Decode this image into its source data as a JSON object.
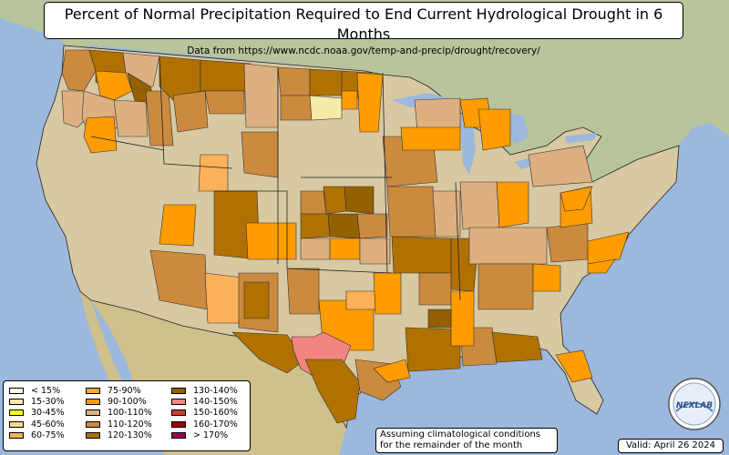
{
  "title": "Percent of Normal Precipitation Required to End Current Hydrological Drought in 6 Months",
  "subtitle": "Data from https://www.ncdc.noaa.gov/temp-and-precip/drought/recovery/",
  "note_line1": "Assuming climatological conditions",
  "note_line2": "for the remainder of the month",
  "valid": "Valid: April 26 2024",
  "logo_text": "NEXLAB",
  "colors": {
    "ocean": "#9cb8dc",
    "land": "#d8c9a3",
    "border": "#000000"
  },
  "legend": [
    {
      "label": "< 15%",
      "color": "#ffffe0"
    },
    {
      "label": "15-30%",
      "color": "#f6eaa6"
    },
    {
      "label": "30-45%",
      "color": "#ffff00"
    },
    {
      "label": "45-60%",
      "color": "#fbd98c"
    },
    {
      "label": "60-75%",
      "color": "#fbb05a"
    },
    {
      "label": "75-90%",
      "color": "#f7a836"
    },
    {
      "label": "90-100%",
      "color": "#ff9c00"
    },
    {
      "label": "100-110%",
      "color": "#deb07f"
    },
    {
      "label": "110-120%",
      "color": "#cc8a3e"
    },
    {
      "label": "120-130%",
      "color": "#b07100"
    },
    {
      "label": "130-140%",
      "color": "#946000"
    },
    {
      "label": "140-150%",
      "color": "#f28482"
    },
    {
      "label": "150-160%",
      "color": "#d03c2a"
    },
    {
      "label": "160-170%",
      "color": "#a00000"
    },
    {
      "label": "> 170%",
      "color": "#a0004c"
    }
  ]
}
